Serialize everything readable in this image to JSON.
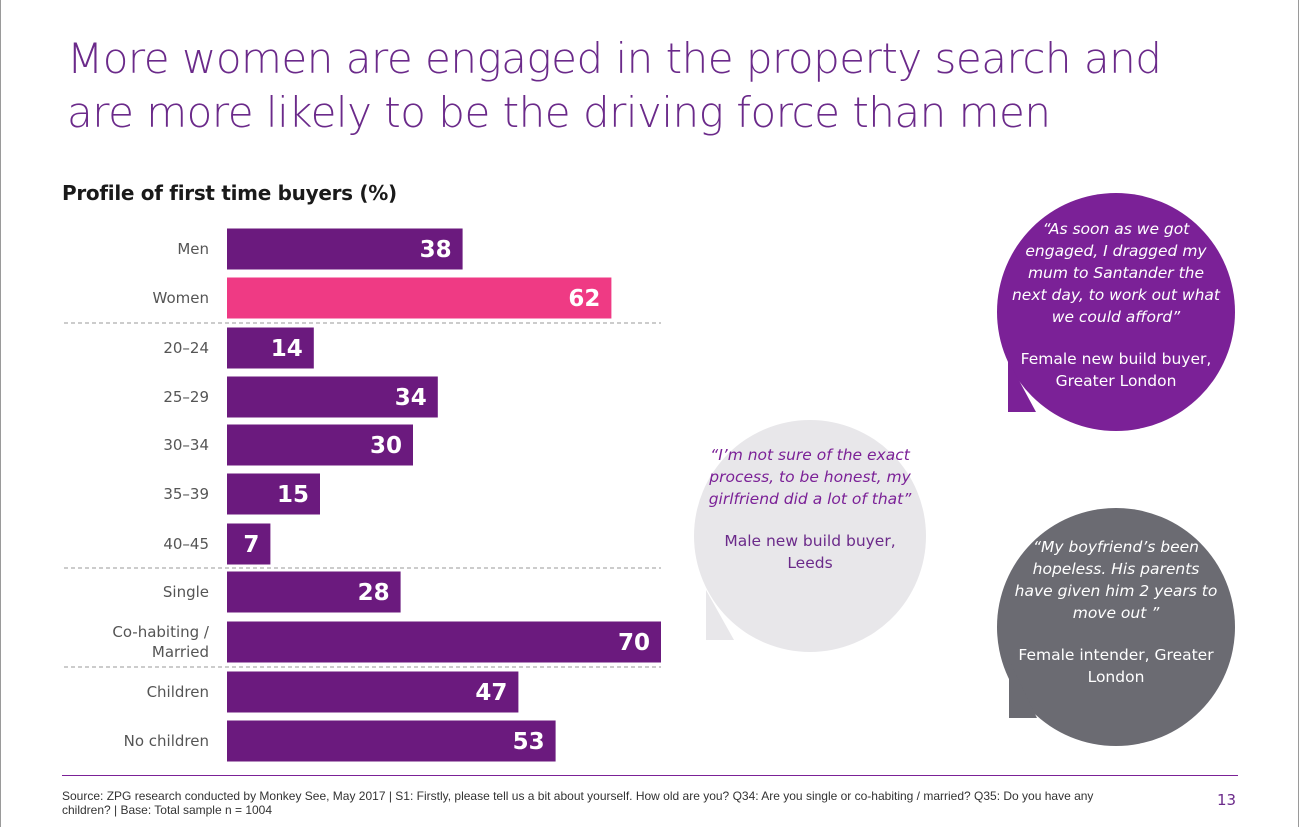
{
  "title": "More women are engaged in the property search and are more likely to be the driving force than men",
  "chart_data": {
    "type": "bar",
    "orientation": "horizontal",
    "title": "Profile of first time buyers (%)",
    "categories": [
      "Men",
      "Women",
      "20–24",
      "25–29",
      "30–34",
      "35–39",
      "40–45",
      "Single",
      "Co-habiting / Married",
      "Children",
      "No children"
    ],
    "values": [
      38,
      62,
      14,
      34,
      30,
      15,
      7,
      28,
      70,
      47,
      53
    ],
    "colors": [
      "#6b1a7e",
      "#ef3a84",
      "#6b1a7e",
      "#6b1a7e",
      "#6b1a7e",
      "#6b1a7e",
      "#6b1a7e",
      "#6b1a7e",
      "#6b1a7e",
      "#6b1a7e",
      "#6b1a7e"
    ],
    "group_breaks_after": [
      "Women",
      "40–45",
      "Co-habiting / Married"
    ],
    "xlim": [
      0,
      70
    ],
    "grid": false
  },
  "quotes": [
    {
      "quote": "“As soon as we got engaged, I dragged my mum to Santander the next day, to work out what we could afford”",
      "attribution": "Female new build buyer, Greater London",
      "color": "#7b2197"
    },
    {
      "quote": "“I’m not sure of the exact process, to be honest, my girlfriend did a lot of that”",
      "attribution": "Male new build buyer, Leeds",
      "color": "#e8e7ea"
    },
    {
      "quote": "“My boyfriend’s been hopeless. His parents have given him 2 years to move out ”",
      "attribution": "Female intender, Greater London",
      "color": "#6b6b72"
    }
  ],
  "source": "Source: ZPG research conducted by Monkey See, May 2017 | S1: Firstly, please tell us a bit about yourself. How old are you? Q34: Are you single or co-habiting / married? Q35: Do you have any children? | Base: Total sample n = 1004",
  "page_number": "13"
}
